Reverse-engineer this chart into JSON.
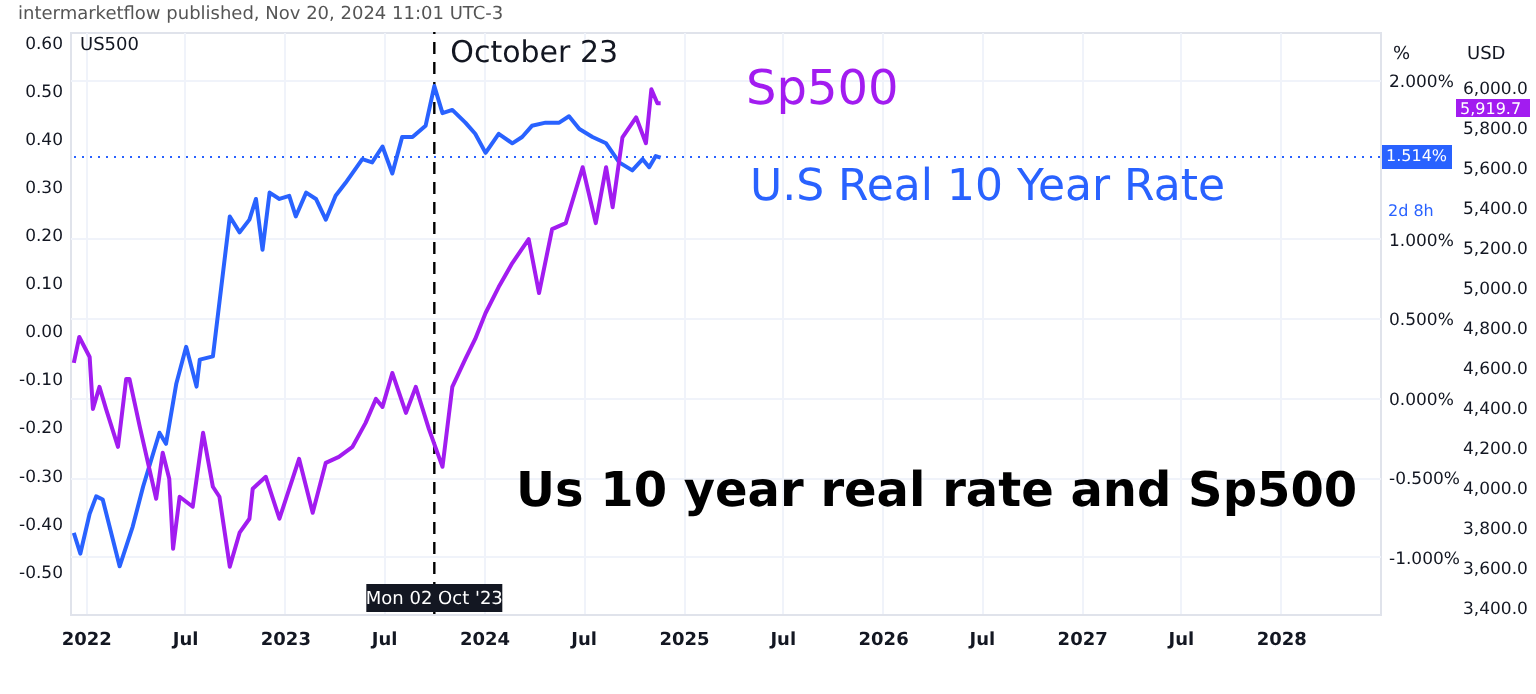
{
  "chart_data": {
    "type": "line",
    "title": "intermarketflow published, Nov 20, 2024 11:01 UTC-3",
    "xlim": [
      "2021-12-03",
      "2028-07-01"
    ],
    "xticks": [
      {
        "value": "2022-01-01",
        "label": "2022"
      },
      {
        "value": "2022-07-01",
        "label": "Jul"
      },
      {
        "value": "2023-01-01",
        "label": "2023"
      },
      {
        "value": "2023-07-01",
        "label": "Jul"
      },
      {
        "value": "2024-01-01",
        "label": "2024"
      },
      {
        "value": "2024-07-01",
        "label": "Jul"
      },
      {
        "value": "2025-01-01",
        "label": "2025"
      },
      {
        "value": "2025-07-01",
        "label": "Jul"
      },
      {
        "value": "2026-01-01",
        "label": "2026"
      },
      {
        "value": "2026-07-01",
        "label": "Jul"
      },
      {
        "value": "2027-01-01",
        "label": "2027"
      },
      {
        "value": "2027-07-01",
        "label": "Jul"
      },
      {
        "value": "2028-01-01",
        "label": "2028"
      }
    ],
    "ylim": [
      -0.59,
      0.62
    ],
    "yticks": [
      {
        "value": 0.6,
        "label": "0.60"
      },
      {
        "value": 0.5,
        "label": "0.50"
      },
      {
        "value": 0.4,
        "label": "0.40"
      },
      {
        "value": 0.3,
        "label": "0.30"
      },
      {
        "value": 0.2,
        "label": "0.20"
      },
      {
        "value": 0.1,
        "label": "0.10"
      },
      {
        "value": 0,
        "label": "0.00"
      },
      {
        "value": -0.1,
        "label": "-0.10"
      },
      {
        "value": -0.2,
        "label": "-0.20"
      },
      {
        "value": -0.3,
        "label": "-0.30"
      },
      {
        "value": -0.4,
        "label": "-0.40"
      },
      {
        "value": -0.5,
        "label": "-0.50"
      }
    ],
    "y2label": "%",
    "y2lim": [
      -1.36,
      2.3
    ],
    "y2ticks": [
      {
        "value": 2,
        "label": "2.000%"
      },
      {
        "value": 1,
        "label": "1.000%"
      },
      {
        "value": 0.5,
        "label": "0.500%"
      },
      {
        "value": 0,
        "label": "0.000%"
      },
      {
        "value": -0.5,
        "label": "-0.500%"
      },
      {
        "value": -1,
        "label": "-1.000%"
      }
    ],
    "y3label": "USD",
    "y3lim": [
      3363,
      6277
    ],
    "y3ticks": [
      {
        "value": 6000,
        "label": "6,000.0"
      },
      {
        "value": 5800,
        "label": "5,800.0"
      },
      {
        "value": 5600,
        "label": "5,600.0"
      },
      {
        "value": 5400,
        "label": "5,400.0"
      },
      {
        "value": 5200,
        "label": "5,200.0"
      },
      {
        "value": 5000,
        "label": "5,000.0"
      },
      {
        "value": 4800,
        "label": "4,800.0"
      },
      {
        "value": 4600,
        "label": "4,600.0"
      },
      {
        "value": 4400,
        "label": "4,400.0"
      },
      {
        "value": 4200,
        "label": "4,200.0"
      },
      {
        "value": 4000,
        "label": "4,000.0"
      },
      {
        "value": 3800,
        "label": "3,800.0"
      },
      {
        "value": 3600,
        "label": "3,600.0"
      },
      {
        "value": 3400,
        "label": "3,400.0"
      }
    ],
    "grid": true,
    "series": [
      {
        "name": "U.S Real 10 Year Rate",
        "color": "#2962ff",
        "axis": "y2",
        "x": [
          "2021-12-10",
          "2021-12-22",
          "2022-01-08",
          "2022-01-20",
          "2022-02-01",
          "2022-03-04",
          "2022-03-28",
          "2022-04-16",
          "2022-05-16",
          "2022-05-28",
          "2022-06-16",
          "2022-07-04",
          "2022-07-23",
          "2022-07-29",
          "2022-08-22",
          "2022-09-22",
          "2022-10-10",
          "2022-10-28",
          "2022-11-09",
          "2022-11-21",
          "2022-12-04",
          "2022-12-22",
          "2023-01-09",
          "2023-01-21",
          "2023-02-09",
          "2023-02-27",
          "2023-03-17",
          "2023-04-04",
          "2023-04-22",
          "2023-05-23",
          "2023-06-10",
          "2023-06-29",
          "2023-07-17",
          "2023-08-04",
          "2023-08-23",
          "2023-09-16",
          "2023-10-02",
          "2023-10-17",
          "2023-11-04",
          "2023-11-28",
          "2023-12-16",
          "2024-01-04",
          "2024-01-28",
          "2024-02-22",
          "2024-03-11",
          "2024-03-29",
          "2024-04-23",
          "2024-05-18",
          "2024-06-05",
          "2024-06-24",
          "2024-07-18",
          "2024-08-12",
          "2024-09-05",
          "2024-09-29",
          "2024-10-18",
          "2024-10-30",
          "2024-11-11",
          "2024-11-20"
        ],
        "values": [
          -0.85,
          -0.98,
          -0.73,
          -0.62,
          -0.64,
          -1.06,
          -0.81,
          -0.56,
          -0.22,
          -0.29,
          0.09,
          0.32,
          0.07,
          0.24,
          0.26,
          1.14,
          1.04,
          1.12,
          1.25,
          0.93,
          1.29,
          1.25,
          1.27,
          1.14,
          1.29,
          1.25,
          1.12,
          1.27,
          1.35,
          1.5,
          1.48,
          1.58,
          1.41,
          1.64,
          1.64,
          1.71,
          1.96,
          1.79,
          1.81,
          1.73,
          1.66,
          1.54,
          1.66,
          1.6,
          1.64,
          1.71,
          1.73,
          1.73,
          1.77,
          1.69,
          1.64,
          1.6,
          1.48,
          1.43,
          1.5,
          1.45,
          1.52,
          1.51
        ]
      },
      {
        "name": "Sp500",
        "color": "#a21cf0",
        "axis": "y3",
        "x": [
          "2021-12-10",
          "2021-12-20",
          "2022-01-08",
          "2022-01-14",
          "2022-01-26",
          "2022-02-07",
          "2022-03-01",
          "2022-03-16",
          "2022-03-22",
          "2022-04-10",
          "2022-05-10",
          "2022-05-22",
          "2022-06-03",
          "2022-06-10",
          "2022-06-22",
          "2022-07-16",
          "2022-08-04",
          "2022-08-22",
          "2022-09-03",
          "2022-09-22",
          "2022-10-10",
          "2022-10-28",
          "2022-11-03",
          "2022-11-27",
          "2022-12-22",
          "2023-01-15",
          "2023-01-27",
          "2023-02-21",
          "2023-03-17",
          "2023-04-10",
          "2023-05-05",
          "2023-05-29",
          "2023-06-17",
          "2023-06-29",
          "2023-07-17",
          "2023-08-11",
          "2023-08-29",
          "2023-09-22",
          "2023-10-17",
          "2023-11-04",
          "2023-11-28",
          "2023-12-16",
          "2024-01-04",
          "2024-01-28",
          "2024-02-22",
          "2024-03-23",
          "2024-04-11",
          "2024-05-05",
          "2024-05-30",
          "2024-06-30",
          "2024-07-24",
          "2024-08-12",
          "2024-08-24",
          "2024-09-11",
          "2024-10-06",
          "2024-10-24",
          "2024-11-03",
          "2024-11-14",
          "2024-11-20"
        ],
        "values": [
          4620,
          4750,
          4650,
          4390,
          4500,
          4390,
          4200,
          4540,
          4540,
          4300,
          3940,
          4170,
          4040,
          3690,
          3950,
          3900,
          4270,
          4000,
          3950,
          3600,
          3770,
          3840,
          3990,
          4050,
          3840,
          4040,
          4140,
          3870,
          4120,
          4150,
          4200,
          4320,
          4440,
          4400,
          4570,
          4370,
          4500,
          4290,
          4100,
          4500,
          4640,
          4740,
          4870,
          5000,
          5120,
          5240,
          4970,
          5290,
          5320,
          5600,
          5320,
          5600,
          5400,
          5750,
          5850,
          5720,
          5990,
          5920,
          5920
        ]
      }
    ],
    "ref_lines": [
      {
        "axis": "x",
        "value": "2023-10-02",
        "label": "October 23",
        "color": "#000000",
        "line_style": "dashed"
      },
      {
        "axis": "y2",
        "value": 1.514,
        "label": "1.514%",
        "color": "#2962ff",
        "line_style": "dotted"
      }
    ],
    "annotations": [
      "US500",
      "Us 10 year real rate and Sp500",
      "2d 8h",
      "5,919.7",
      {
        "text": "Mon 02 Oct '23",
        "x": "2023-10-02"
      }
    ]
  }
}
